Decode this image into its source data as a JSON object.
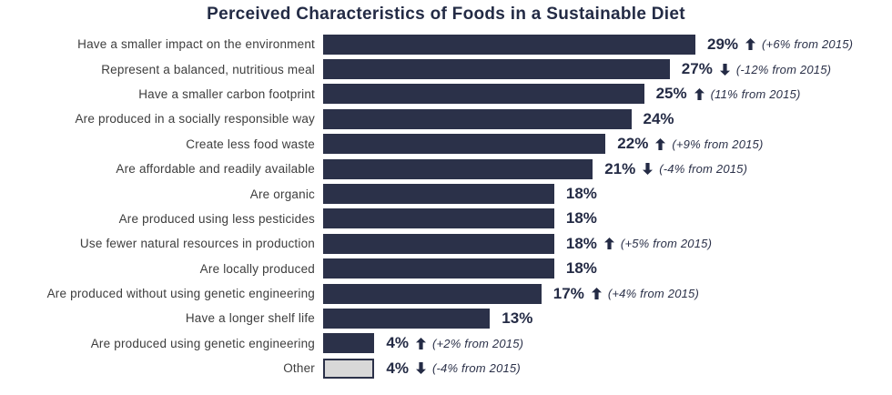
{
  "title": "Perceived Characteristics of Foods in a Sustainable Diet",
  "colors": {
    "bar": "#2b3149",
    "other_bar_fill": "#d8d8d8",
    "other_bar_border": "#2b3149",
    "title_text": "#232b45",
    "category_text": "#3d3d3d",
    "annotation_text": "#2b3149"
  },
  "chart_data": {
    "type": "bar",
    "orientation": "horizontal",
    "title": "Perceived Characteristics of Foods in a Sustainable Diet",
    "unit": "%",
    "xlim": [
      0,
      29
    ],
    "grid": false,
    "legend": false,
    "categories": [
      "Have a smaller impact on the environment",
      "Represent a balanced, nutritious meal",
      "Have a smaller carbon footprint",
      "Are produced in a socially responsible way",
      "Create less food waste",
      "Are affordable and readily available",
      "Are organic",
      "Are produced using less pesticides",
      "Use fewer natural resources in production",
      "Are locally produced",
      "Are produced without using genetic engineering",
      "Have a longer shelf life",
      "Are produced using genetic engineering",
      "Other"
    ],
    "values": [
      29,
      27,
      25,
      24,
      22,
      21,
      18,
      18,
      18,
      18,
      17,
      13,
      4,
      4
    ],
    "rows": [
      {
        "label": "Have a smaller impact on the environment",
        "value": 29,
        "value_label": "29%",
        "trend": "up",
        "change_label": "(+6% from 2015)"
      },
      {
        "label": "Represent a balanced, nutritious meal",
        "value": 27,
        "value_label": "27%",
        "trend": "down",
        "change_label": "(-12% from 2015)"
      },
      {
        "label": "Have a smaller carbon footprint",
        "value": 25,
        "value_label": "25%",
        "trend": "up",
        "change_label": "(11% from 2015)"
      },
      {
        "label": "Are produced in a socially responsible way",
        "value": 24,
        "value_label": "24%",
        "trend": null,
        "change_label": null
      },
      {
        "label": "Create less food waste",
        "value": 22,
        "value_label": "22%",
        "trend": "up",
        "change_label": "(+9% from 2015)"
      },
      {
        "label": "Are affordable and readily available",
        "value": 21,
        "value_label": "21%",
        "trend": "down",
        "change_label": "(-4% from 2015)"
      },
      {
        "label": "Are organic",
        "value": 18,
        "value_label": "18%",
        "trend": null,
        "change_label": null
      },
      {
        "label": "Are produced using less pesticides",
        "value": 18,
        "value_label": "18%",
        "trend": null,
        "change_label": null
      },
      {
        "label": "Use fewer natural resources in production",
        "value": 18,
        "value_label": "18%",
        "trend": "up",
        "change_label": "(+5% from 2015)"
      },
      {
        "label": "Are locally produced",
        "value": 18,
        "value_label": "18%",
        "trend": null,
        "change_label": null
      },
      {
        "label": "Are produced without using genetic engineering",
        "value": 17,
        "value_label": "17%",
        "trend": "up",
        "change_label": "(+4% from 2015)"
      },
      {
        "label": "Have a longer shelf life",
        "value": 13,
        "value_label": "13%",
        "trend": null,
        "change_label": null
      },
      {
        "label": "Are produced using genetic engineering",
        "value": 4,
        "value_label": "4%",
        "trend": "up",
        "change_label": "(+2% from 2015)"
      },
      {
        "label": "Other",
        "value": 4,
        "value_label": "4%",
        "trend": "down",
        "change_label": "(-4% from 2015)",
        "style": "other"
      }
    ]
  }
}
